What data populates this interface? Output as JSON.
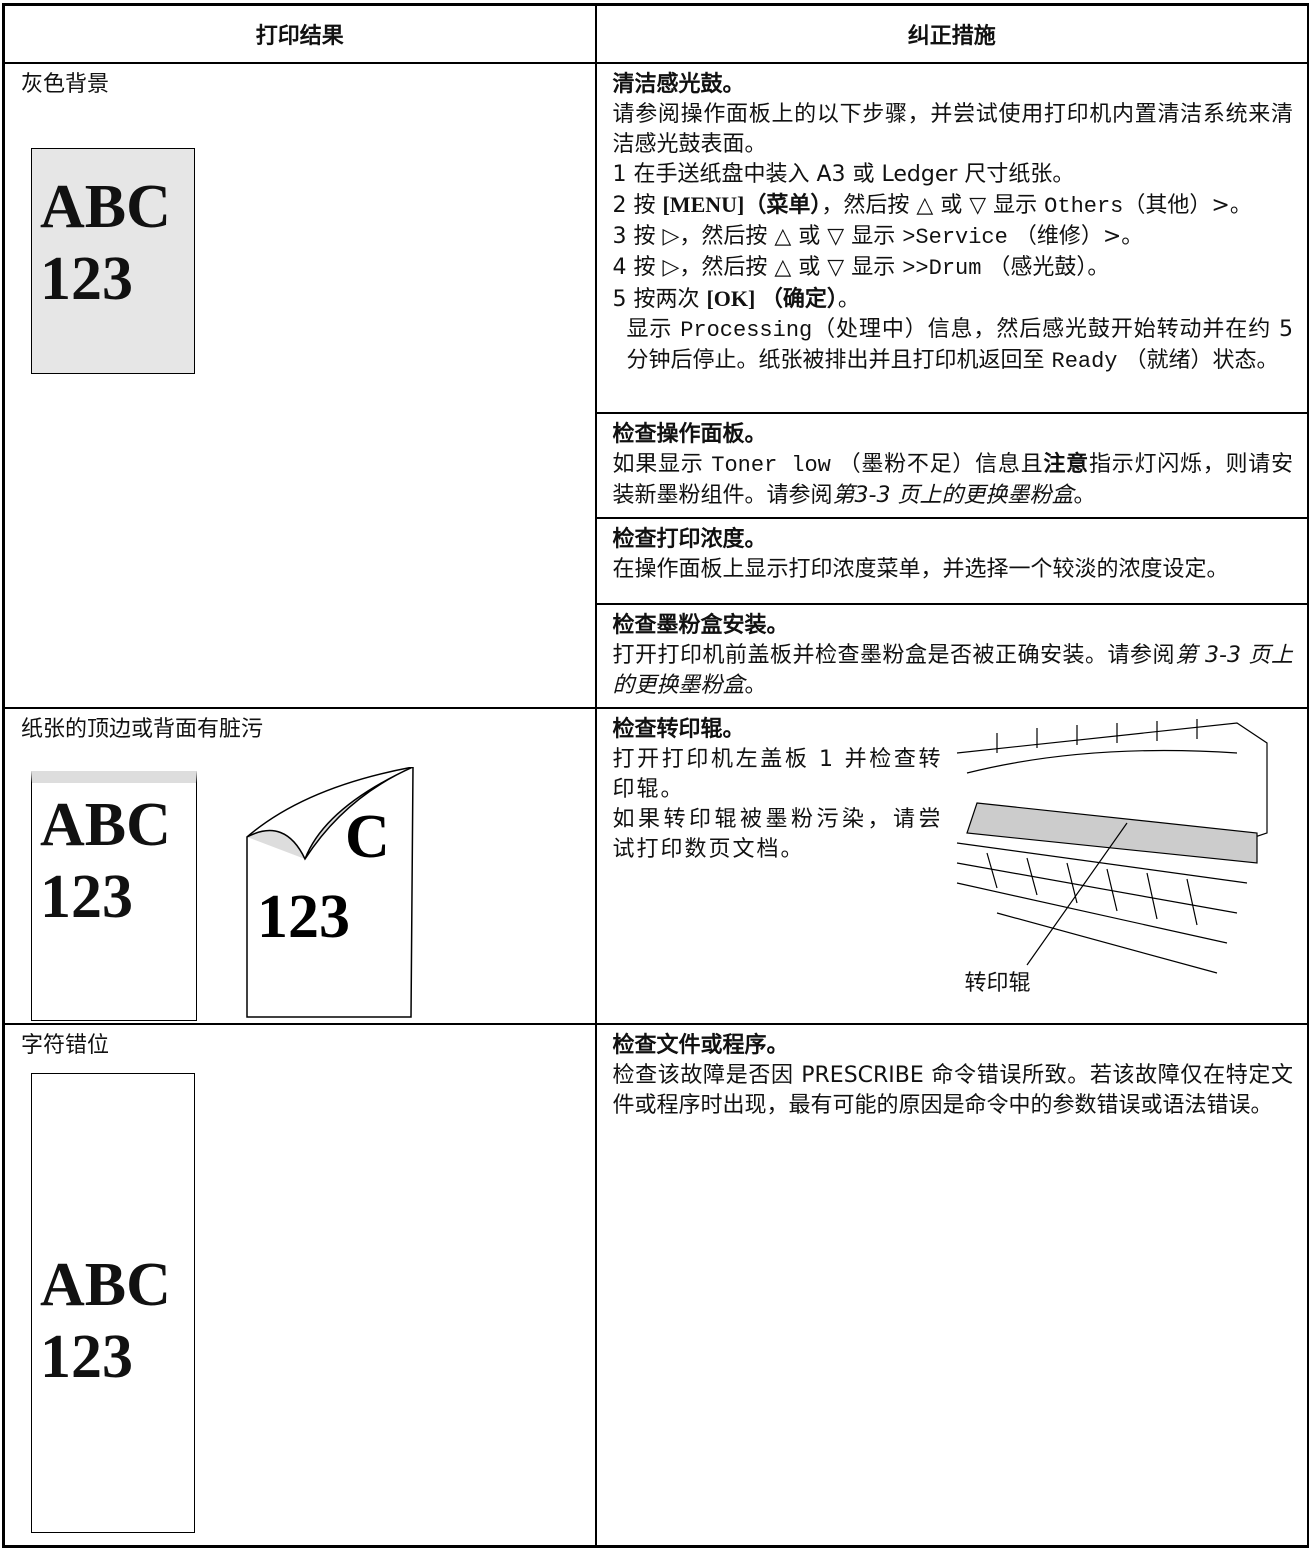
{
  "table": {
    "header": [
      "打印结果",
      "纠正措施"
    ],
    "rows": [
      {
        "result": "灰色背景",
        "sample": [
          "ABC",
          "123"
        ],
        "actions": [
          {
            "title": "清洁感光鼓。",
            "lines": [
              [
                "请参阅操作面板上的以下步骤，并尝试使用打印机内置清洁系统来清洁感光鼓表面。"
              ],
              [
                "1 在手送纸盘中装入 A3 或 Ledger 尺寸纸张。"
              ],
              [
                "2 按 ",
                "[MENU]（菜单）",
                "，然后按 △ 或 ▽ 显示 ",
                "Others",
                "（其他）>。"
              ],
              [
                "3 按 ▷，然后按 △ 或 ▽ 显示 ",
                ">Service",
                " （维修）>。"
              ],
              [
                "4 按 ▷，然后按 △ 或 ▽ 显示 ",
                ">>Drum",
                " （感光鼓）。"
              ],
              [
                "5 按两次 ",
                "[OK] （确定）",
                "。"
              ],
              [
                "显示 ",
                "Processing",
                "（处理中）信息，然后感光鼓开始转动并在约 5 分钟后停止。纸张被排出并且打印机返回至 ",
                "Ready",
                " （就绪）状态。"
              ]
            ]
          },
          {
            "title": "检查操作面板。",
            "lines": [
              [
                "如果显示 ",
                "Toner low",
                " （墨粉不足）信息且",
                "注意",
                "指示灯闪烁，则请安装新墨粉组件。请参阅",
                "第3-3 页上的更换墨粉盒",
                "。"
              ]
            ]
          },
          {
            "title": "检查打印浓度。",
            "lines": [
              [
                "在操作面板上显示打印浓度菜单，并选择一个较淡的浓度设定。"
              ]
            ]
          },
          {
            "title": "检查墨粉盒安装。",
            "lines": [
              [
                "打开打印机前盖板并检查墨粉盒是否被正确安装。请参阅",
                "第 3-3 页上的更换墨粉盒",
                "。"
              ]
            ]
          }
        ]
      },
      {
        "result": "纸张的顶边或背面有脏污",
        "sample": [
          "ABC",
          "123"
        ],
        "sample2": [
          "C",
          "123"
        ],
        "actions": [
          {
            "title": "检查转印辊。",
            "lines": [
              [
                "打开打印机左盖板 1 并检查转印辊。"
              ],
              [
                "如果转印辊被墨粉污染，请尝试打印数页文档。"
              ]
            ],
            "figure_label": "转印辊"
          }
        ]
      },
      {
        "result": "字符错位",
        "sample": [
          "ABC",
          "123"
        ],
        "actions": [
          {
            "title": "检查文件或程序。",
            "lines": [
              [
                "检查该故障是否因 PRESCRIBE 命令错误所致。若该故障仅在特定文件或程序时出现，最有可能的原因是命令中的参数错误或语法错误。"
              ]
            ]
          }
        ]
      }
    ]
  }
}
